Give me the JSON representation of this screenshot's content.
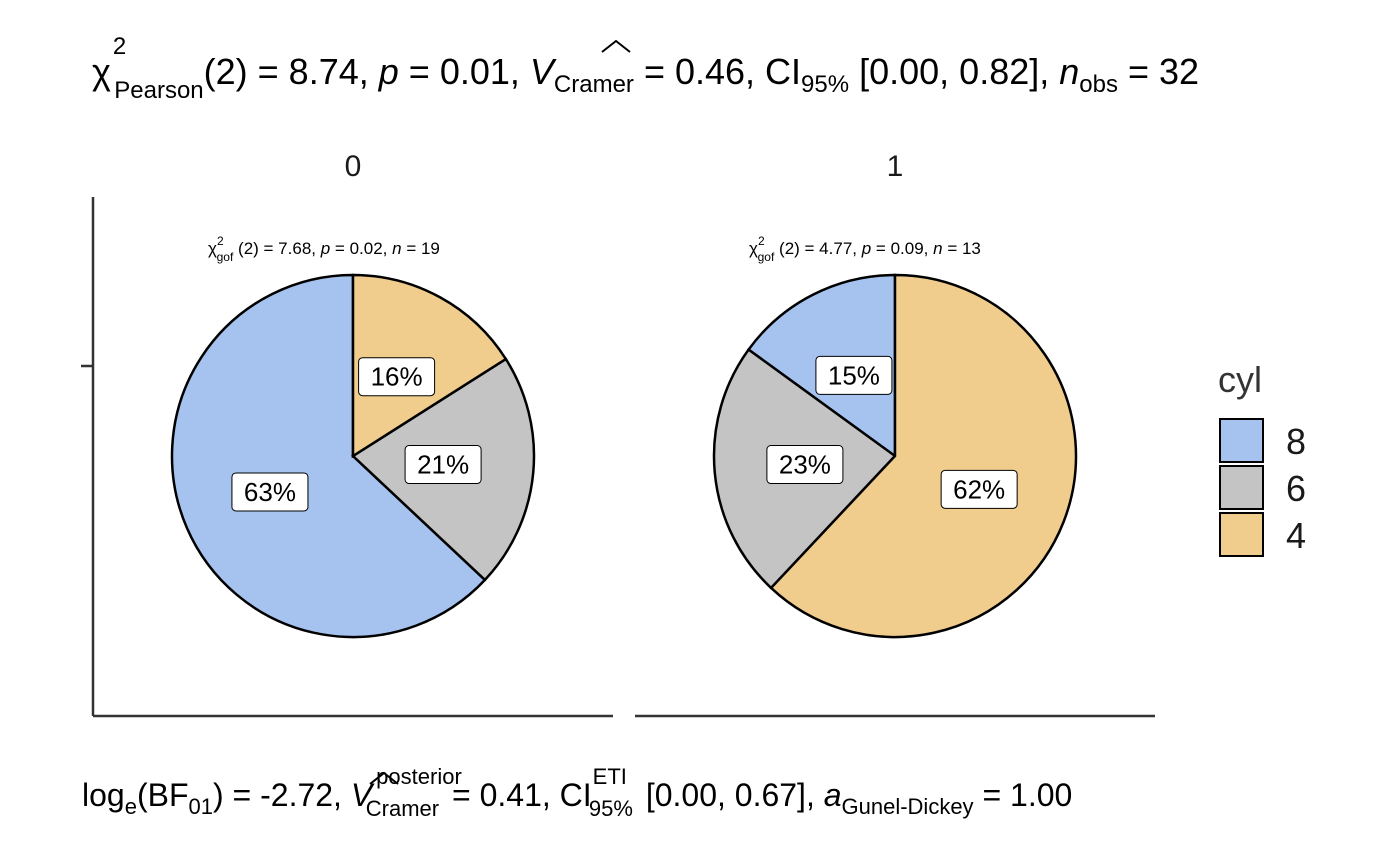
{
  "subtitle_top": {
    "chi": "χ",
    "sup2": "2",
    "pearson": "Pearson",
    "df": "(2) = 8.74, ",
    "p": "p",
    "p_val": " = 0.01, ",
    "V": "V",
    "cramer": "Cramer",
    "v_val": " = 0.46, CI",
    "ci_sub": "95%",
    "ci_val": " [0.00, 0.82], ",
    "n": "n",
    "obs": "obs",
    "n_val": " = 32"
  },
  "caption_bottom": {
    "log": "log",
    "e": "e",
    "bf": "(BF",
    "bf_sub": "01",
    "bf_val": ") = -2.72, ",
    "V": "V",
    "posterior": "posterior",
    "cramer": "Cramer",
    "v_val": " = 0.41, CI",
    "eti": "ETI",
    "ci_sub": "95%",
    "ci_val": " [0.00, 0.67], ",
    "a": "a",
    "gd": "Gunel-Dickey",
    "a_val": " = 1.00"
  },
  "legend": {
    "title": "cyl",
    "items": [
      {
        "label": "8",
        "color": "#a6c3f0"
      },
      {
        "label": "6",
        "color": "#c4c4c4"
      },
      {
        "label": "4",
        "color": "#f0cd8d"
      }
    ]
  },
  "chart_data": {
    "type": "pie",
    "facets": [
      {
        "strip": "0",
        "stat": {
          "chi": "χ",
          "sup2": "2",
          "gof": "gof",
          "df": " (2) = 7.68, ",
          "p": "p",
          "p_val": " = 0.02, ",
          "n": "n",
          "n_val": " = 19"
        },
        "slices": [
          {
            "category": "8",
            "value": 63,
            "label": "63%",
            "color": "#a6c3f0"
          },
          {
            "category": "6",
            "value": 21,
            "label": "21%",
            "color": "#c4c4c4"
          },
          {
            "category": "4",
            "value": 16,
            "label": "16%",
            "color": "#f0cd8d"
          }
        ]
      },
      {
        "strip": "1",
        "stat": {
          "chi": "χ",
          "sup2": "2",
          "gof": "gof",
          "df": " (2) = 4.77, ",
          "p": "p",
          "p_val": " = 0.09, ",
          "n": "n",
          "n_val": " = 13"
        },
        "slices": [
          {
            "category": "8",
            "value": 15,
            "label": "15%",
            "color": "#a6c3f0"
          },
          {
            "category": "6",
            "value": 23,
            "label": "23%",
            "color": "#c4c4c4"
          },
          {
            "category": "4",
            "value": 62,
            "label": "62%",
            "color": "#f0cd8d"
          }
        ]
      }
    ]
  }
}
